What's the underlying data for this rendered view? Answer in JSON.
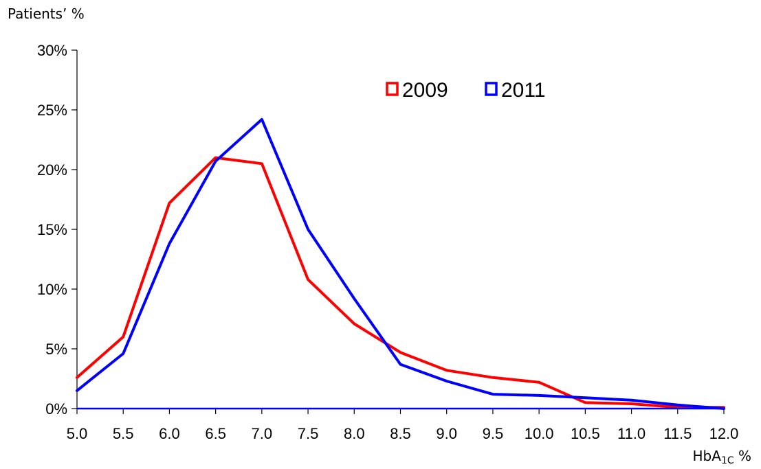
{
  "chart_data": {
    "type": "line",
    "ylabel": "Patients’ %",
    "xlabel": {
      "base": "HbA",
      "subscript": "1C",
      "suffix": " %"
    },
    "x": [
      5.0,
      5.5,
      6.0,
      6.5,
      7.0,
      7.5,
      8.0,
      8.5,
      9.0,
      9.5,
      10.0,
      10.5,
      11.0,
      11.5,
      12.0
    ],
    "x_tick_labels": [
      "5.0",
      "5.5",
      "6.0",
      "6.5",
      "7.0",
      "7.5",
      "8.0",
      "8.5",
      "9.0",
      "9.5",
      "10.0",
      "10.5",
      "11.0",
      "11.5",
      "12.0"
    ],
    "y_ticks": [
      0,
      5,
      10,
      15,
      20,
      25,
      30
    ],
    "y_tick_labels": [
      "0%",
      "5%",
      "10%",
      "15%",
      "20%",
      "25%",
      "30%"
    ],
    "xlim": [
      5.0,
      12.0
    ],
    "ylim": [
      0,
      30
    ],
    "grid": false,
    "legend_position": "top-center",
    "series": [
      {
        "name": "2009",
        "color": "#ff0000",
        "values": [
          2.6,
          6.0,
          17.2,
          21.0,
          20.5,
          10.8,
          7.1,
          4.7,
          3.2,
          2.6,
          2.2,
          0.5,
          0.4,
          0.1,
          0.1
        ]
      },
      {
        "name": "2011",
        "color": "#0000ff",
        "values": [
          1.5,
          4.6,
          13.8,
          20.7,
          24.2,
          15.0,
          9.2,
          3.7,
          2.3,
          1.2,
          1.1,
          0.9,
          0.7,
          0.3,
          0.0
        ]
      }
    ]
  }
}
